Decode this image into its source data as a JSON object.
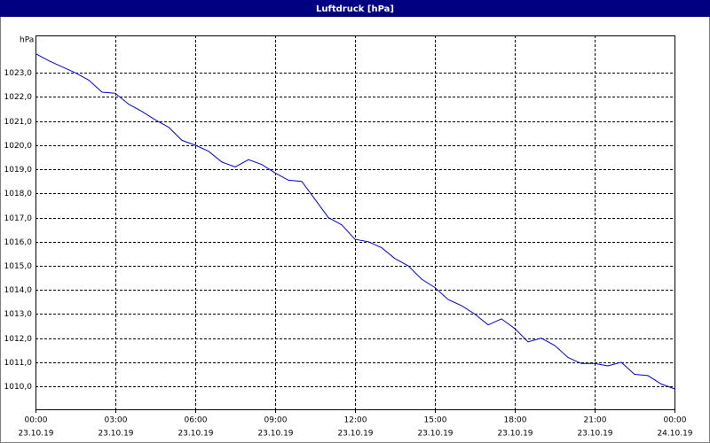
{
  "chart_data": {
    "type": "line",
    "title": "Luftdruck [hPa]",
    "y_label": "hPa",
    "x": [
      0,
      0.5,
      1,
      1.5,
      2,
      2.5,
      3,
      3.5,
      4,
      4.5,
      5,
      5.5,
      6,
      6.5,
      7,
      7.5,
      8,
      8.5,
      9,
      9.5,
      10,
      10.5,
      11,
      11.5,
      12,
      12.5,
      13,
      13.5,
      14,
      14.5,
      15,
      15.5,
      16,
      16.5,
      17,
      17.5,
      18,
      18.5,
      19,
      19.5,
      20,
      20.5,
      21,
      21.5,
      22,
      22.5,
      23,
      23.5,
      24
    ],
    "series": [
      {
        "name": "Luftdruck",
        "color": "#0000cc",
        "values": [
          1023.8,
          1023.5,
          1023.25,
          1023.0,
          1022.7,
          1022.2,
          1022.15,
          1021.7,
          1021.4,
          1021.05,
          1020.75,
          1020.2,
          1020.0,
          1019.75,
          1019.3,
          1019.1,
          1019.4,
          1019.2,
          1018.85,
          1018.55,
          1018.5,
          1017.75,
          1017.0,
          1016.7,
          1016.1,
          1016.0,
          1015.75,
          1015.3,
          1015.0,
          1014.45,
          1014.1,
          1013.6,
          1013.35,
          1013.0,
          1012.55,
          1012.8,
          1012.4,
          1011.85,
          1012.0,
          1011.7,
          1011.2,
          1010.95,
          1010.95,
          1010.85,
          1011.0,
          1010.5,
          1010.45,
          1010.1,
          1009.9
        ]
      }
    ],
    "xlim": [
      0,
      24
    ],
    "xticks": [
      {
        "value": 0,
        "label": "00:00",
        "date": "23.10.19"
      },
      {
        "value": 3,
        "label": "03:00",
        "date": "23.10.19"
      },
      {
        "value": 6,
        "label": "06:00",
        "date": "23.10.19"
      },
      {
        "value": 9,
        "label": "09:00",
        "date": "23.10.19"
      },
      {
        "value": 12,
        "label": "12:00",
        "date": "23.10.19"
      },
      {
        "value": 15,
        "label": "15:00",
        "date": "23.10.19"
      },
      {
        "value": 18,
        "label": "18:00",
        "date": "23.10.19"
      },
      {
        "value": 21,
        "label": "21:00",
        "date": "23.10.19"
      },
      {
        "value": 24,
        "label": "00:00",
        "date": "24.10.19"
      }
    ],
    "ylim": [
      1009.05,
      1024.55
    ],
    "yticks": [
      {
        "value": 1010,
        "label": "1010,0"
      },
      {
        "value": 1011,
        "label": "1011,0"
      },
      {
        "value": 1012,
        "label": "1012,0"
      },
      {
        "value": 1013,
        "label": "1013,0"
      },
      {
        "value": 1014,
        "label": "1014,0"
      },
      {
        "value": 1015,
        "label": "1015,0"
      },
      {
        "value": 1016,
        "label": "1016,0"
      },
      {
        "value": 1017,
        "label": "1017,0"
      },
      {
        "value": 1018,
        "label": "1018,0"
      },
      {
        "value": 1019,
        "label": "1019,0"
      },
      {
        "value": 1020,
        "label": "1020,0"
      },
      {
        "value": 1021,
        "label": "1021,0"
      },
      {
        "value": 1022,
        "label": "1022,0"
      },
      {
        "value": 1023,
        "label": "1023,0"
      }
    ],
    "grid": true
  }
}
